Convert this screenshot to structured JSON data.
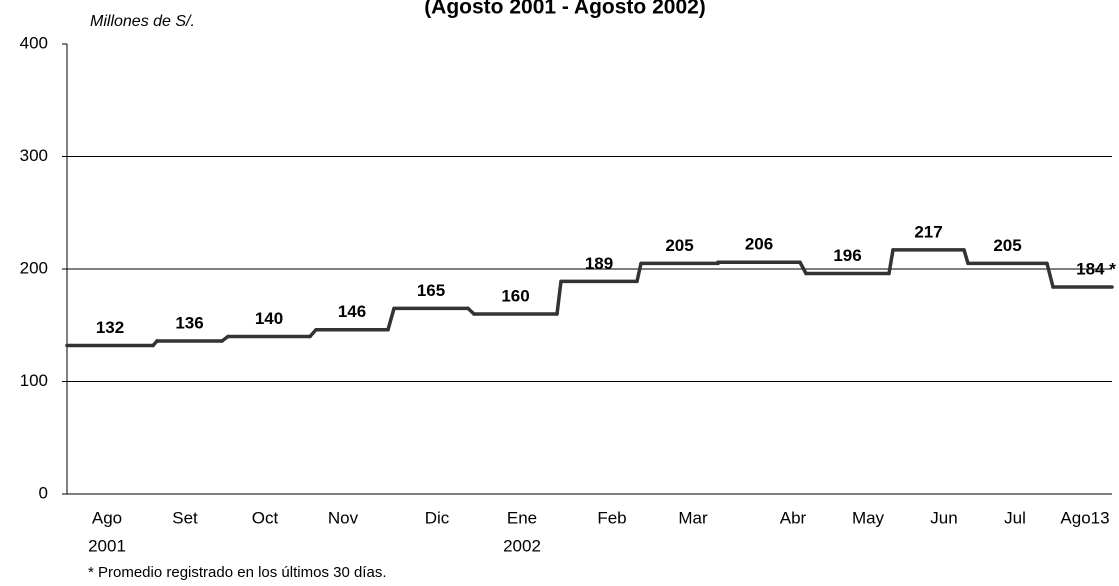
{
  "chart_data": {
    "type": "step",
    "title": "(Agosto 2001 - Agosto 2002)",
    "y_axis_label": "Millones de S/.",
    "footnote": "* Promedio registrado en los últimos 30 días.",
    "categories": [
      "Ago",
      "Set",
      "Oct",
      "Nov",
      "Dic",
      "Ene",
      "Feb",
      "Mar",
      "Abr",
      "May",
      "Jun",
      "Jul",
      "Ago13"
    ],
    "x_sublabels": [
      "2001",
      null,
      null,
      null,
      null,
      "2002",
      null,
      null,
      null,
      null,
      null,
      null,
      null
    ],
    "values": [
      132,
      136,
      140,
      146,
      165,
      160,
      189,
      205,
      206,
      196,
      217,
      205,
      184
    ],
    "value_labels": [
      "132",
      "136",
      "140",
      "146",
      "165",
      "160",
      "189",
      "205",
      "206",
      "196",
      "217",
      "205",
      "184 *"
    ],
    "color": "#333333",
    "ylim": [
      0,
      400
    ],
    "yticks": [
      0,
      100,
      200,
      300,
      400
    ],
    "grid": true
  }
}
